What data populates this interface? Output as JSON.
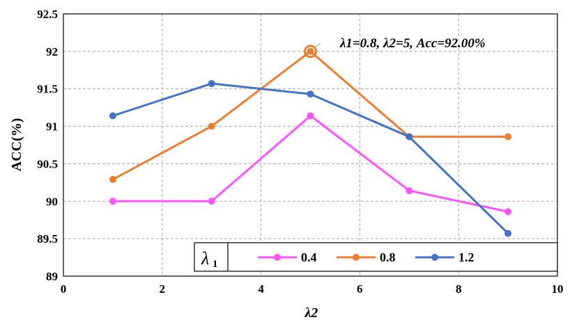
{
  "chart_data": {
    "type": "line",
    "xlabel": "λ2",
    "ylabel": "ACC(%)",
    "xlim": [
      0,
      10
    ],
    "ylim": [
      89,
      92.5
    ],
    "x_ticks": [
      "0",
      "2",
      "4",
      "6",
      "8",
      "10"
    ],
    "y_ticks": [
      "89",
      "89.5",
      "90",
      "90.5",
      "91",
      "91.5",
      "92",
      "92.5"
    ],
    "grid": true,
    "legend_title": "λ",
    "legend_title_sub": "1",
    "legend_placement": "bottom-right",
    "x": [
      1,
      3,
      5,
      7,
      9
    ],
    "series": [
      {
        "name": "0.4",
        "color": "#ff55ff",
        "values": [
          90.0,
          90.0,
          91.14,
          90.14,
          89.86
        ]
      },
      {
        "name": "0.8",
        "color": "#ed7d31",
        "values": [
          90.29,
          91.0,
          92.0,
          90.86,
          90.86
        ]
      },
      {
        "name": "1.2",
        "color": "#4472c4",
        "values": [
          91.14,
          91.57,
          91.43,
          90.86,
          89.57
        ]
      }
    ],
    "annotation": {
      "text": "λ1=0.8, λ2=5, Acc=92.00%",
      "x": 5,
      "y": 92.0
    }
  }
}
